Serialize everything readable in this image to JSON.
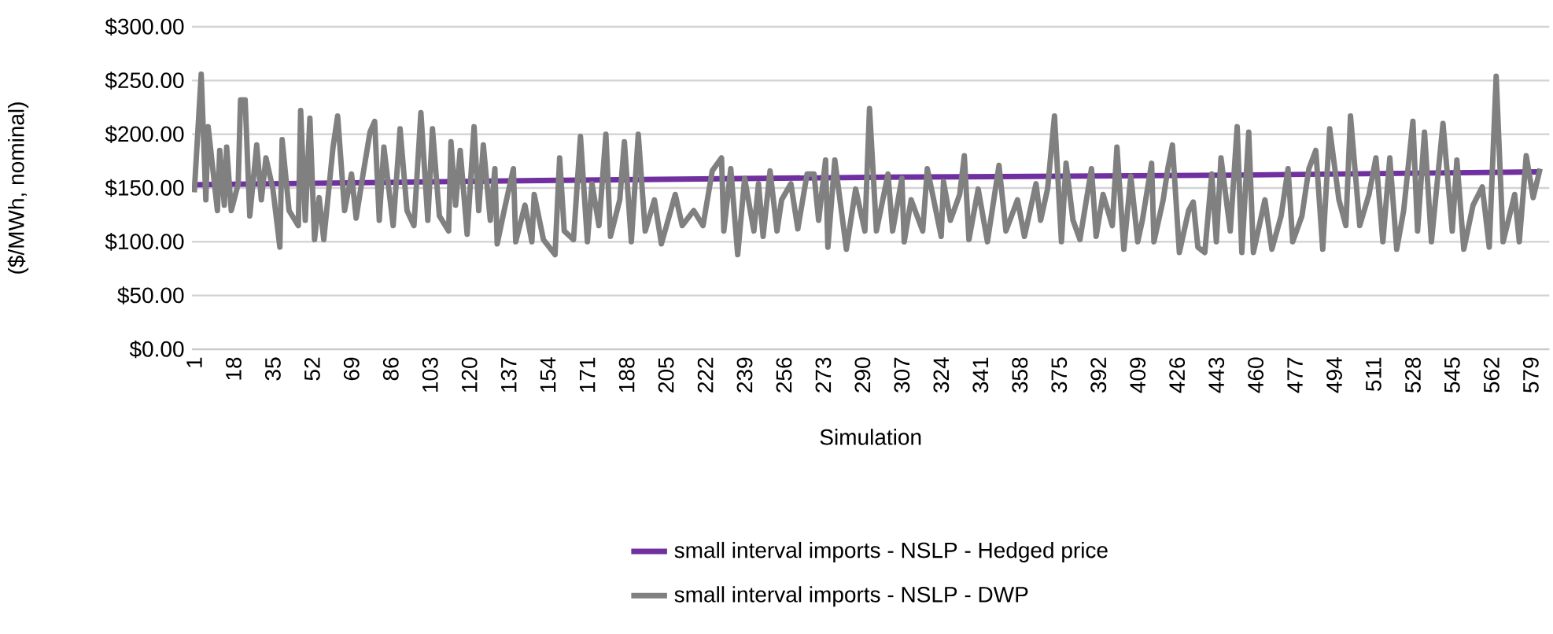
{
  "chart_data": {
    "type": "line",
    "xlabel": "Simulation",
    "ylabel": "($/MWh, nominal)",
    "xlim": [
      0,
      587
    ],
    "ylim": [
      0,
      300
    ],
    "xticks": [
      1,
      18,
      35,
      52,
      69,
      86,
      103,
      120,
      137,
      154,
      171,
      188,
      205,
      222,
      239,
      256,
      273,
      290,
      307,
      324,
      341,
      358,
      375,
      392,
      409,
      426,
      443,
      460,
      477,
      494,
      511,
      528,
      545,
      562,
      579
    ],
    "yticks": [
      {
        "value": 0,
        "label": "$0.00"
      },
      {
        "value": 50,
        "label": "$50.00"
      },
      {
        "value": 100,
        "label": "$100.00"
      },
      {
        "value": 150,
        "label": "$150.00"
      },
      {
        "value": 200,
        "label": "$200.00"
      },
      {
        "value": 250,
        "label": "$250.00"
      },
      {
        "value": 300,
        "label": "$300.00"
      }
    ],
    "grid": "y",
    "legend": "bottom",
    "series": [
      {
        "name": "small interval imports - NSLP - Hedged price",
        "color": "#7030a0",
        "x": [
          1,
          150,
          300,
          450,
          583
        ],
        "values": [
          153,
          157,
          160,
          162,
          165
        ]
      },
      {
        "name": "small interval imports - NSLP - DWP",
        "color": "#808080",
        "x": [
          1,
          4,
          6,
          7,
          11,
          12,
          14,
          15,
          17,
          20,
          21,
          23,
          25,
          28,
          30,
          32,
          35,
          38,
          39,
          42,
          46,
          47,
          49,
          51,
          53,
          55,
          57,
          61,
          63,
          66,
          69,
          71,
          74,
          77,
          79,
          81,
          83,
          87,
          90,
          93,
          96,
          99,
          102,
          104,
          107,
          111,
          112,
          114,
          116,
          119,
          122,
          124,
          126,
          129,
          131,
          132,
          135,
          139,
          140,
          144,
          147,
          148,
          152,
          157,
          159,
          161,
          165,
          168,
          171,
          173,
          176,
          179,
          181,
          185,
          187,
          190,
          193,
          196,
          200,
          203,
          209,
          212,
          217,
          221,
          225,
          229,
          230,
          233,
          236,
          239,
          243,
          245,
          247,
          250,
          253,
          255,
          259,
          262,
          266,
          269,
          271,
          274,
          275,
          278,
          283,
          287,
          291,
          293,
          296,
          301,
          303,
          307,
          308,
          311,
          316,
          318,
          324,
          325,
          328,
          332,
          334,
          336,
          340,
          344,
          349,
          352,
          357,
          360,
          365,
          367,
          370,
          373,
          376,
          378,
          381,
          384,
          389,
          391,
          394,
          398,
          400,
          403,
          406,
          409,
          411,
          415,
          416,
          420,
          422,
          424,
          427,
          431,
          433,
          435,
          438,
          441,
          443,
          445,
          449,
          452,
          454,
          457,
          459,
          464,
          467,
          471,
          474,
          476,
          480,
          483,
          486,
          489,
          492,
          496,
          499,
          501,
          505,
          509,
          512,
          515,
          518,
          521,
          524,
          528,
          530,
          533,
          536,
          541,
          545,
          547,
          550,
          554,
          558,
          561,
          564,
          567,
          572,
          574,
          577,
          580,
          583
        ],
        "values": [
          146,
          256,
          139,
          207,
          129,
          185,
          134,
          188,
          129,
          154,
          232,
          232,
          124,
          190,
          139,
          178,
          149,
          95,
          195,
          129,
          115,
          222,
          120,
          215,
          102,
          141,
          102,
          188,
          217,
          129,
          163,
          122,
          163,
          202,
          212,
          120,
          188,
          115,
          205,
          129,
          115,
          220,
          120,
          205,
          124,
          110,
          193,
          134,
          185,
          107,
          207,
          129,
          190,
          120,
          168,
          98,
          129,
          168,
          100,
          134,
          100,
          144,
          102,
          88,
          178,
          110,
          102,
          198,
          100,
          154,
          115,
          200,
          105,
          139,
          193,
          100,
          200,
          110,
          139,
          98,
          144,
          115,
          129,
          115,
          166,
          178,
          110,
          168,
          88,
          159,
          110,
          154,
          105,
          166,
          110,
          139,
          154,
          112,
          163,
          163,
          120,
          176,
          95,
          176,
          93,
          149,
          110,
          224,
          110,
          163,
          110,
          159,
          100,
          139,
          110,
          168,
          105,
          156,
          120,
          144,
          180,
          102,
          149,
          100,
          171,
          110,
          139,
          105,
          154,
          120,
          149,
          217,
          100,
          173,
          120,
          102,
          168,
          105,
          144,
          115,
          188,
          93,
          161,
          100,
          120,
          173,
          100,
          139,
          168,
          190,
          90,
          129,
          137,
          95,
          90,
          163,
          100,
          178,
          110,
          207,
          90,
          202,
          90,
          139,
          93,
          124,
          168,
          100,
          124,
          168,
          185,
          93,
          205,
          139,
          115,
          217,
          115,
          144,
          178,
          100,
          178,
          93,
          129,
          212,
          110,
          202,
          100,
          210,
          110,
          176,
          93,
          134,
          151,
          95,
          254,
          100,
          144,
          100,
          180,
          141,
          168
        ]
      }
    ]
  }
}
